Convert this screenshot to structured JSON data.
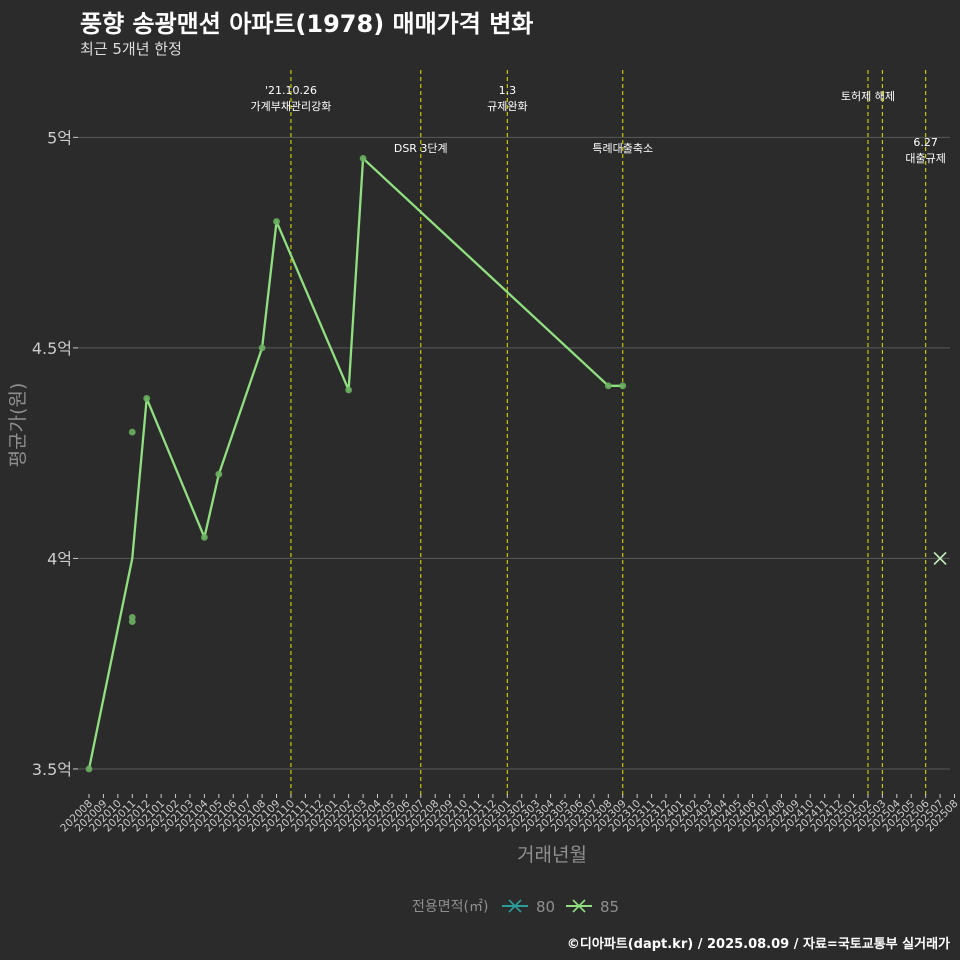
{
  "header": {
    "title": "풍향 송광맨션 아파트(1978) 매매가격 변화",
    "subtitle": "최근 5개년 한정"
  },
  "footer": {
    "credit": "©디아파트(dapt.kr) / 2025.08.09 / 자료=국토교통부 실거래가"
  },
  "colors": {
    "background": "#2b2b2b",
    "grid": "#5a5a5a",
    "event_line": "#d4d400",
    "series_85": "#90e080",
    "series_80": "#2a9d9a",
    "axis_text": "#cccccc",
    "axis_title": "#8f8f8f"
  },
  "chart_data": {
    "type": "line",
    "title": "풍향 송광맨션 아파트(1978) 매매가격 변화",
    "xlabel": "거래년월",
    "ylabel": "평균가(원)",
    "ylim": [
      3.45,
      5.16
    ],
    "y_ticks": [
      3.5,
      4.0,
      4.5,
      5.0
    ],
    "y_tick_labels": [
      "3.5억",
      "4억",
      "4.5억",
      "5억"
    ],
    "categories": [
      "202008",
      "202009",
      "202010",
      "202011",
      "202012",
      "202101",
      "202102",
      "202103",
      "202104",
      "202105",
      "202106",
      "202107",
      "202108",
      "202109",
      "202110",
      "202111",
      "202112",
      "202201",
      "202202",
      "202203",
      "202204",
      "202205",
      "202206",
      "202207",
      "202208",
      "202209",
      "202210",
      "202211",
      "202212",
      "202301",
      "202302",
      "202303",
      "202304",
      "202305",
      "202306",
      "202307",
      "202308",
      "202309",
      "202310",
      "202311",
      "202312",
      "202401",
      "202402",
      "202403",
      "202404",
      "202405",
      "202406",
      "202407",
      "202408",
      "202409",
      "202410",
      "202411",
      "202412",
      "202501",
      "202502",
      "202503",
      "202504",
      "202505",
      "202506",
      "202507",
      "202508"
    ],
    "events": [
      {
        "month": "202110",
        "label": [
          "'21.10.26",
          "가계부채관리강화"
        ],
        "label_row": 1
      },
      {
        "month": "202207",
        "label": [
          "DSR 3단계"
        ],
        "label_row": 2
      },
      {
        "month": "202301",
        "label": [
          "1.3",
          "규제완화"
        ],
        "label_row": 1
      },
      {
        "month": "202309",
        "label": [
          "특례대출축소"
        ],
        "label_row": 2
      },
      {
        "month": "202502",
        "label": [
          "토허제 해제"
        ],
        "label_row": 1
      },
      {
        "month": "202503",
        "label": [],
        "label_row": 1
      },
      {
        "month": "202506",
        "label": [
          "6.27",
          "대출규제"
        ],
        "label_row": 2
      }
    ],
    "series": [
      {
        "name": "80",
        "line": [],
        "points": []
      },
      {
        "name": "85",
        "line": [
          {
            "month": "202008",
            "value": 3.5
          },
          {
            "month": "202011",
            "value": 4.0
          },
          {
            "month": "202012",
            "value": 4.38
          },
          {
            "month": "202104",
            "value": 4.05
          },
          {
            "month": "202105",
            "value": 4.2
          },
          {
            "month": "202108",
            "value": 4.5
          },
          {
            "month": "202109",
            "value": 4.8
          },
          {
            "month": "202202",
            "value": 4.4
          },
          {
            "month": "202203",
            "value": 4.95
          },
          {
            "month": "202308",
            "value": 4.41
          },
          {
            "month": "202309",
            "value": 4.41
          }
        ],
        "points": [
          {
            "month": "202008",
            "value": 3.5
          },
          {
            "month": "202011",
            "value": 4.3
          },
          {
            "month": "202011",
            "value": 3.86
          },
          {
            "month": "202011",
            "value": 3.85
          },
          {
            "month": "202012",
            "value": 4.38
          },
          {
            "month": "202104",
            "value": 4.05
          },
          {
            "month": "202105",
            "value": 4.2
          },
          {
            "month": "202108",
            "value": 4.5
          },
          {
            "month": "202109",
            "value": 4.8
          },
          {
            "month": "202202",
            "value": 4.4
          },
          {
            "month": "202203",
            "value": 4.95
          },
          {
            "month": "202308",
            "value": 4.41
          },
          {
            "month": "202309",
            "value": 4.41
          }
        ],
        "latest_marker": {
          "month": "202507",
          "value": 4.0
        }
      }
    ],
    "legend": {
      "title": "전용면적(㎡)",
      "entries": [
        "80",
        "85"
      ],
      "position": "bottom"
    }
  }
}
